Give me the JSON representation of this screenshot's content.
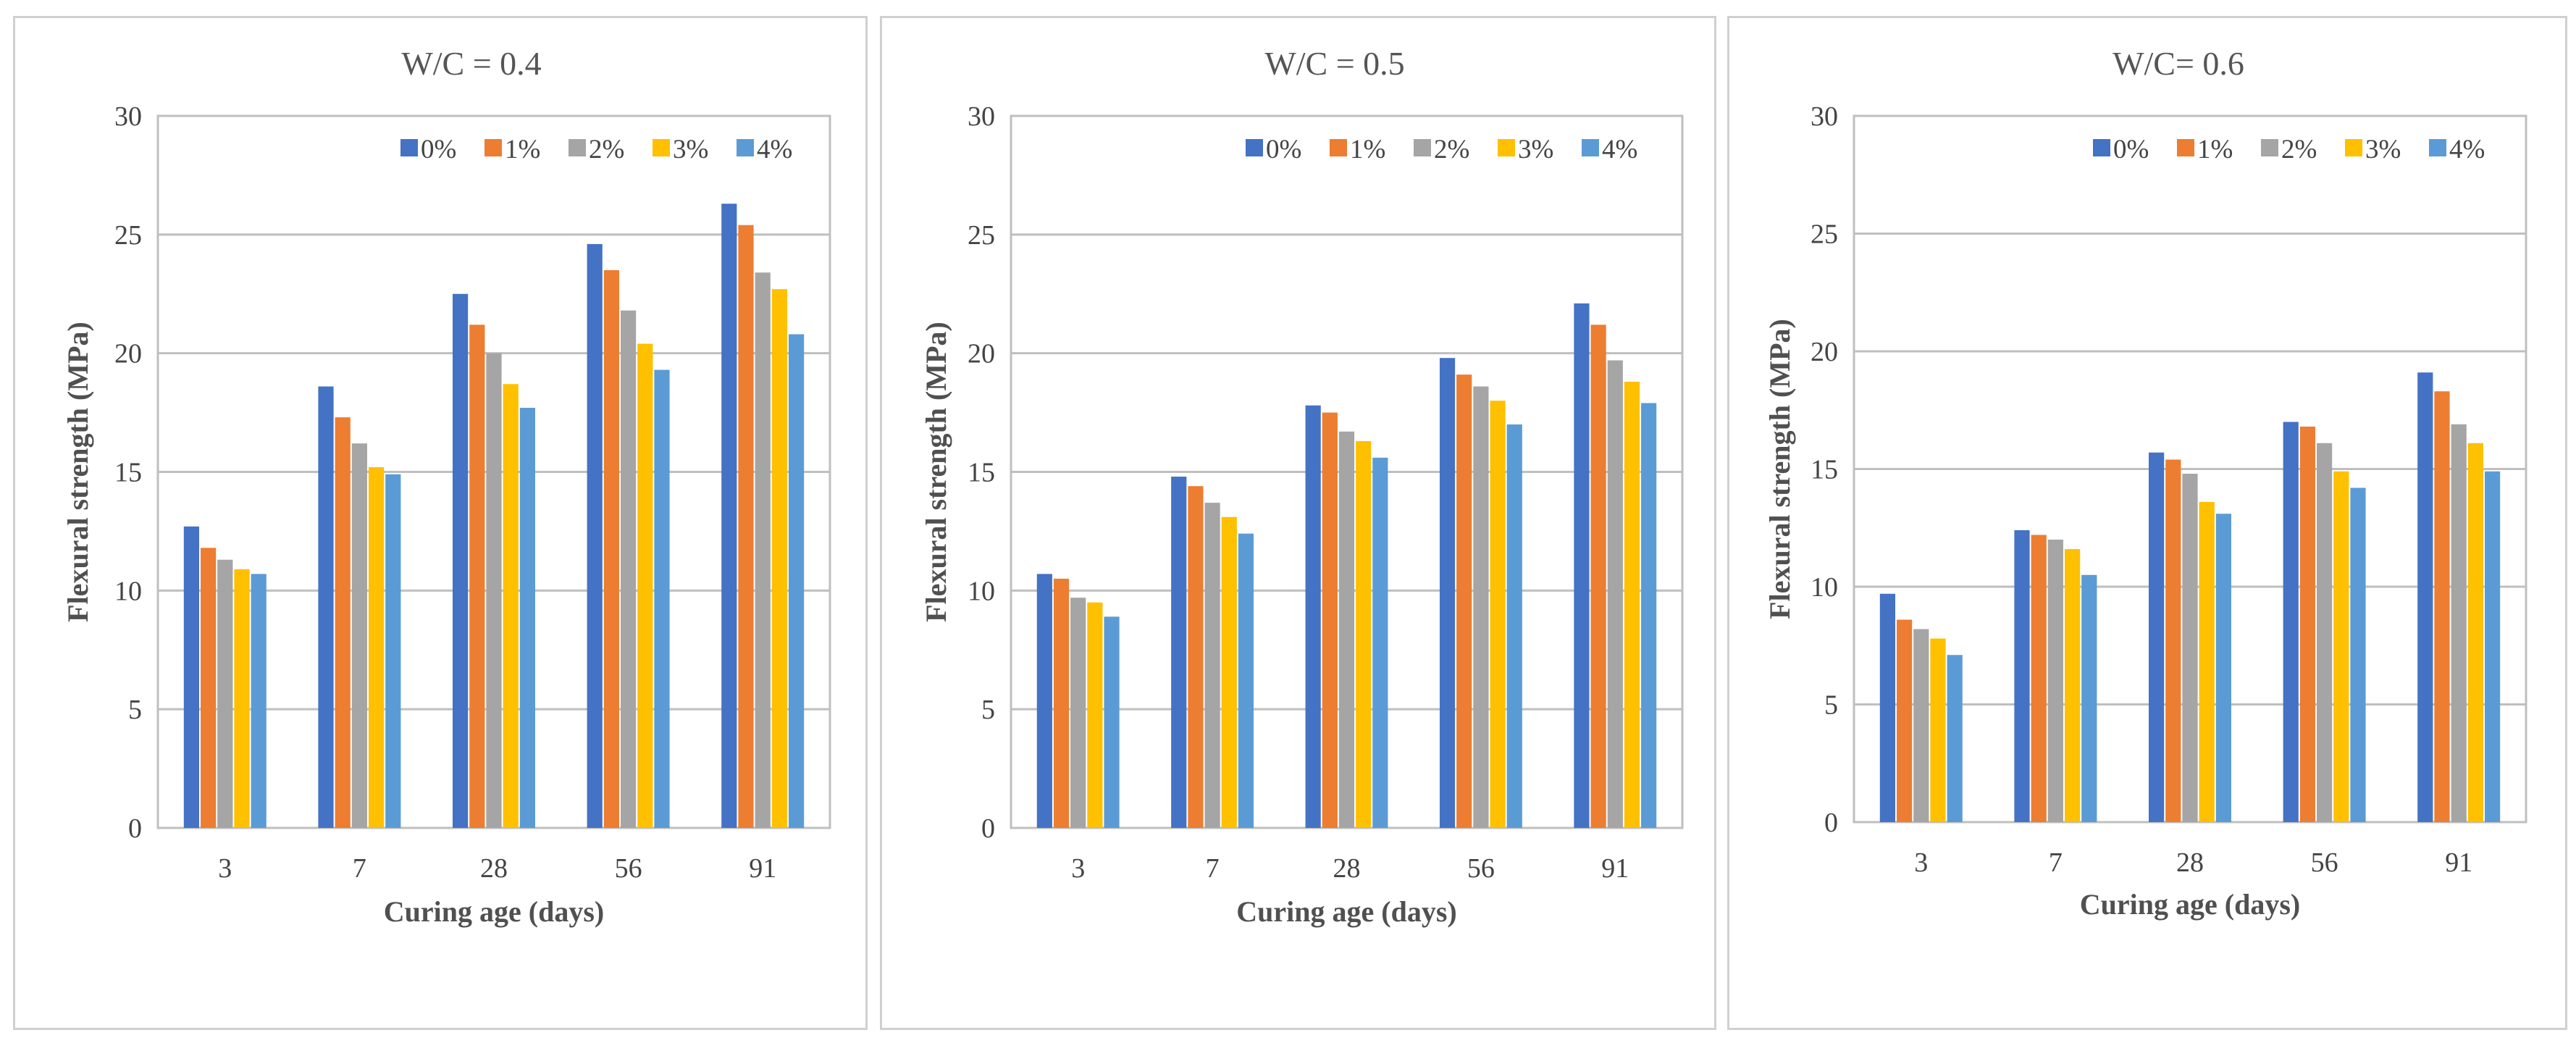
{
  "chart_data": [
    {
      "type": "bar",
      "title": "W/C = 0.4",
      "xlabel": "Curing age (days)",
      "ylabel": "Flexural strength (MPa)",
      "categories": [
        "3",
        "7",
        "28",
        "56",
        "91"
      ],
      "ylim": [
        0,
        30
      ],
      "yticks": [
        "0",
        "5",
        "10",
        "15",
        "20",
        "25",
        "30"
      ],
      "legend_position": "top-right",
      "grid": true,
      "series": [
        {
          "name": "0%",
          "color": "#4472c4",
          "values": [
            12.7,
            18.6,
            22.5,
            24.6,
            26.3
          ]
        },
        {
          "name": "1%",
          "color": "#ed7d31",
          "values": [
            11.8,
            17.3,
            21.2,
            23.5,
            25.4
          ]
        },
        {
          "name": "2%",
          "color": "#a5a5a5",
          "values": [
            11.3,
            16.2,
            20.0,
            21.8,
            23.4
          ]
        },
        {
          "name": "3%",
          "color": "#ffc000",
          "values": [
            10.9,
            15.2,
            18.7,
            20.4,
            22.7
          ]
        },
        {
          "name": "4%",
          "color": "#5b9bd5",
          "values": [
            10.7,
            14.9,
            17.7,
            19.3,
            20.8
          ]
        }
      ]
    },
    {
      "type": "bar",
      "title": "W/C = 0.5",
      "xlabel": "Curing age (days)",
      "ylabel": "Flexural strength (MPa)",
      "categories": [
        "3",
        "7",
        "28",
        "56",
        "91"
      ],
      "ylim": [
        0,
        30
      ],
      "yticks": [
        "0",
        "5",
        "10",
        "15",
        "20",
        "25",
        "30"
      ],
      "legend_position": "top-right",
      "grid": true,
      "series": [
        {
          "name": "0%",
          "color": "#4472c4",
          "values": [
            10.7,
            14.8,
            17.8,
            19.8,
            22.1
          ]
        },
        {
          "name": "1%",
          "color": "#ed7d31",
          "values": [
            10.5,
            14.4,
            17.5,
            19.1,
            21.2
          ]
        },
        {
          "name": "2%",
          "color": "#a5a5a5",
          "values": [
            9.7,
            13.7,
            16.7,
            18.6,
            19.7
          ]
        },
        {
          "name": "3%",
          "color": "#ffc000",
          "values": [
            9.5,
            13.1,
            16.3,
            18.0,
            18.8
          ]
        },
        {
          "name": "4%",
          "color": "#5b9bd5",
          "values": [
            8.9,
            12.4,
            15.6,
            17.0,
            17.9
          ]
        }
      ]
    },
    {
      "type": "bar",
      "title": "W/C= 0.6",
      "xlabel": "Curing age (days)",
      "ylabel": "Flexural strength (MPa)",
      "categories": [
        "3",
        "7",
        "28",
        "56",
        "91"
      ],
      "ylim": [
        0,
        30
      ],
      "yticks": [
        "0",
        "5",
        "10",
        "15",
        "20",
        "25",
        "30"
      ],
      "legend_position": "top-right",
      "grid": true,
      "series": [
        {
          "name": "0%",
          "color": "#4472c4",
          "values": [
            9.7,
            12.4,
            15.7,
            17.0,
            19.1
          ]
        },
        {
          "name": "1%",
          "color": "#ed7d31",
          "values": [
            8.6,
            12.2,
            15.4,
            16.8,
            18.3
          ]
        },
        {
          "name": "2%",
          "color": "#a5a5a5",
          "values": [
            8.2,
            12.0,
            14.8,
            16.1,
            16.9
          ]
        },
        {
          "name": "3%",
          "color": "#ffc000",
          "values": [
            7.8,
            11.6,
            13.6,
            14.9,
            16.1
          ]
        },
        {
          "name": "4%",
          "color": "#5b9bd5",
          "values": [
            7.1,
            10.5,
            13.1,
            14.2,
            14.9
          ]
        }
      ]
    }
  ]
}
